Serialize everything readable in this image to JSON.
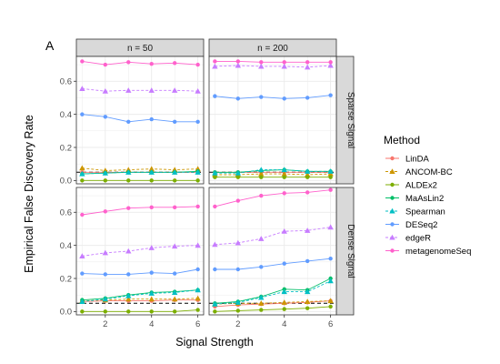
{
  "chart_data": {
    "type": "line",
    "tag": "A",
    "xlabel": "Signal Strength",
    "ylabel": "Empirical False Discovery Rate",
    "x": [
      1,
      2,
      3,
      4,
      5,
      6
    ],
    "x_ticks": [
      "2",
      "4",
      "6"
    ],
    "xlim": [
      0.75,
      6.25
    ],
    "ylim": [
      -0.02,
      0.75
    ],
    "y_ticks": [
      "0.0",
      "0.2",
      "0.4",
      "0.6"
    ],
    "reference_line": 0.05,
    "grid": true,
    "legend": {
      "title": "Method",
      "position": "right"
    },
    "columns": [
      "n = 50",
      "n = 200"
    ],
    "rows": [
      "Sparse Signal",
      "Dense Signal"
    ],
    "methods": [
      {
        "name": "LinDA",
        "color": "#F8766D",
        "marker": "circle",
        "dash": "solid"
      },
      {
        "name": "ANCOM-BC",
        "color": "#CD9600",
        "marker": "triangle",
        "dash": "dashed"
      },
      {
        "name": "ALDEx2",
        "color": "#7CAE00",
        "marker": "circle",
        "dash": "solid"
      },
      {
        "name": "MaAsLin2",
        "color": "#00BE67",
        "marker": "circle",
        "dash": "solid"
      },
      {
        "name": "Spearman",
        "color": "#00BFC4",
        "marker": "triangle",
        "dash": "dashed"
      },
      {
        "name": "DESeq2",
        "color": "#619CFF",
        "marker": "circle",
        "dash": "solid"
      },
      {
        "name": "edgeR",
        "color": "#C77CFF",
        "marker": "triangle",
        "dash": "dashed"
      },
      {
        "name": "metagenomeSeq",
        "color": "#FF61CC",
        "marker": "circle",
        "dash": "solid"
      }
    ],
    "panels": [
      {
        "row": "Sparse Signal",
        "column": "n = 50",
        "series": [
          {
            "name": "LinDA",
            "values": [
              0.05,
              0.05,
              0.05,
              0.05,
              0.05,
              0.05
            ]
          },
          {
            "name": "ANCOM-BC",
            "values": [
              0.075,
              0.06,
              0.065,
              0.07,
              0.065,
              0.07
            ]
          },
          {
            "name": "ALDEx2",
            "values": [
              0.0,
              0.0,
              0.0,
              0.0,
              0.0,
              0.0
            ]
          },
          {
            "name": "MaAsLin2",
            "values": [
              0.04,
              0.045,
              0.05,
              0.05,
              0.05,
              0.055
            ]
          },
          {
            "name": "Spearman",
            "values": [
              0.04,
              0.045,
              0.05,
              0.05,
              0.05,
              0.05
            ]
          },
          {
            "name": "DESeq2",
            "values": [
              0.4,
              0.385,
              0.355,
              0.37,
              0.355,
              0.355
            ]
          },
          {
            "name": "edgeR",
            "values": [
              0.555,
              0.54,
              0.545,
              0.545,
              0.545,
              0.54
            ]
          },
          {
            "name": "metagenomeSeq",
            "values": [
              0.72,
              0.7,
              0.715,
              0.705,
              0.71,
              0.7
            ]
          }
        ]
      },
      {
        "row": "Sparse Signal",
        "column": "n = 200",
        "series": [
          {
            "name": "LinDA",
            "values": [
              0.05,
              0.05,
              0.05,
              0.05,
              0.05,
              0.05
            ]
          },
          {
            "name": "ANCOM-BC",
            "values": [
              0.035,
              0.035,
              0.04,
              0.04,
              0.035,
              0.04
            ]
          },
          {
            "name": "ALDEx2",
            "values": [
              0.02,
              0.02,
              0.02,
              0.02,
              0.02,
              0.02
            ]
          },
          {
            "name": "MaAsLin2",
            "values": [
              0.05,
              0.05,
              0.06,
              0.065,
              0.055,
              0.055
            ]
          },
          {
            "name": "Spearman",
            "values": [
              0.045,
              0.045,
              0.065,
              0.065,
              0.055,
              0.055
            ]
          },
          {
            "name": "DESeq2",
            "values": [
              0.51,
              0.495,
              0.505,
              0.495,
              0.5,
              0.515
            ]
          },
          {
            "name": "edgeR",
            "values": [
              0.69,
              0.695,
              0.69,
              0.69,
              0.685,
              0.695
            ]
          },
          {
            "name": "metagenomeSeq",
            "values": [
              0.72,
              0.72,
              0.715,
              0.715,
              0.715,
              0.715
            ]
          }
        ]
      },
      {
        "row": "Dense Signal",
        "column": "n = 50",
        "series": [
          {
            "name": "LinDA",
            "values": [
              0.06,
              0.065,
              0.065,
              0.065,
              0.07,
              0.07
            ]
          },
          {
            "name": "ANCOM-BC",
            "values": [
              0.065,
              0.07,
              0.075,
              0.075,
              0.075,
              0.08
            ]
          },
          {
            "name": "ALDEx2",
            "values": [
              0.0,
              0.0,
              0.0,
              0.0,
              0.0,
              0.01
            ]
          },
          {
            "name": "MaAsLin2",
            "values": [
              0.07,
              0.08,
              0.1,
              0.115,
              0.12,
              0.13
            ]
          },
          {
            "name": "Spearman",
            "values": [
              0.06,
              0.075,
              0.095,
              0.11,
              0.115,
              0.13
            ]
          },
          {
            "name": "DESeq2",
            "values": [
              0.23,
              0.225,
              0.225,
              0.235,
              0.23,
              0.255
            ]
          },
          {
            "name": "edgeR",
            "values": [
              0.335,
              0.355,
              0.365,
              0.385,
              0.395,
              0.4
            ]
          },
          {
            "name": "metagenomeSeq",
            "values": [
              0.585,
              0.605,
              0.625,
              0.63,
              0.63,
              0.635
            ]
          }
        ]
      },
      {
        "row": "Dense Signal",
        "column": "n = 200",
        "series": [
          {
            "name": "LinDA",
            "values": [
              0.03,
              0.04,
              0.045,
              0.05,
              0.055,
              0.065
            ]
          },
          {
            "name": "ANCOM-BC",
            "values": [
              0.045,
              0.05,
              0.05,
              0.055,
              0.06,
              0.065
            ]
          },
          {
            "name": "ALDEx2",
            "values": [
              0.0,
              0.005,
              0.01,
              0.015,
              0.02,
              0.03
            ]
          },
          {
            "name": "MaAsLin2",
            "values": [
              0.05,
              0.06,
              0.09,
              0.135,
              0.13,
              0.2
            ]
          },
          {
            "name": "Spearman",
            "values": [
              0.045,
              0.055,
              0.085,
              0.12,
              0.12,
              0.185
            ]
          },
          {
            "name": "DESeq2",
            "values": [
              0.255,
              0.255,
              0.27,
              0.29,
              0.305,
              0.32
            ]
          },
          {
            "name": "edgeR",
            "values": [
              0.405,
              0.415,
              0.44,
              0.485,
              0.49,
              0.51
            ]
          },
          {
            "name": "metagenomeSeq",
            "values": [
              0.635,
              0.67,
              0.7,
              0.715,
              0.72,
              0.735
            ]
          }
        ]
      }
    ]
  }
}
